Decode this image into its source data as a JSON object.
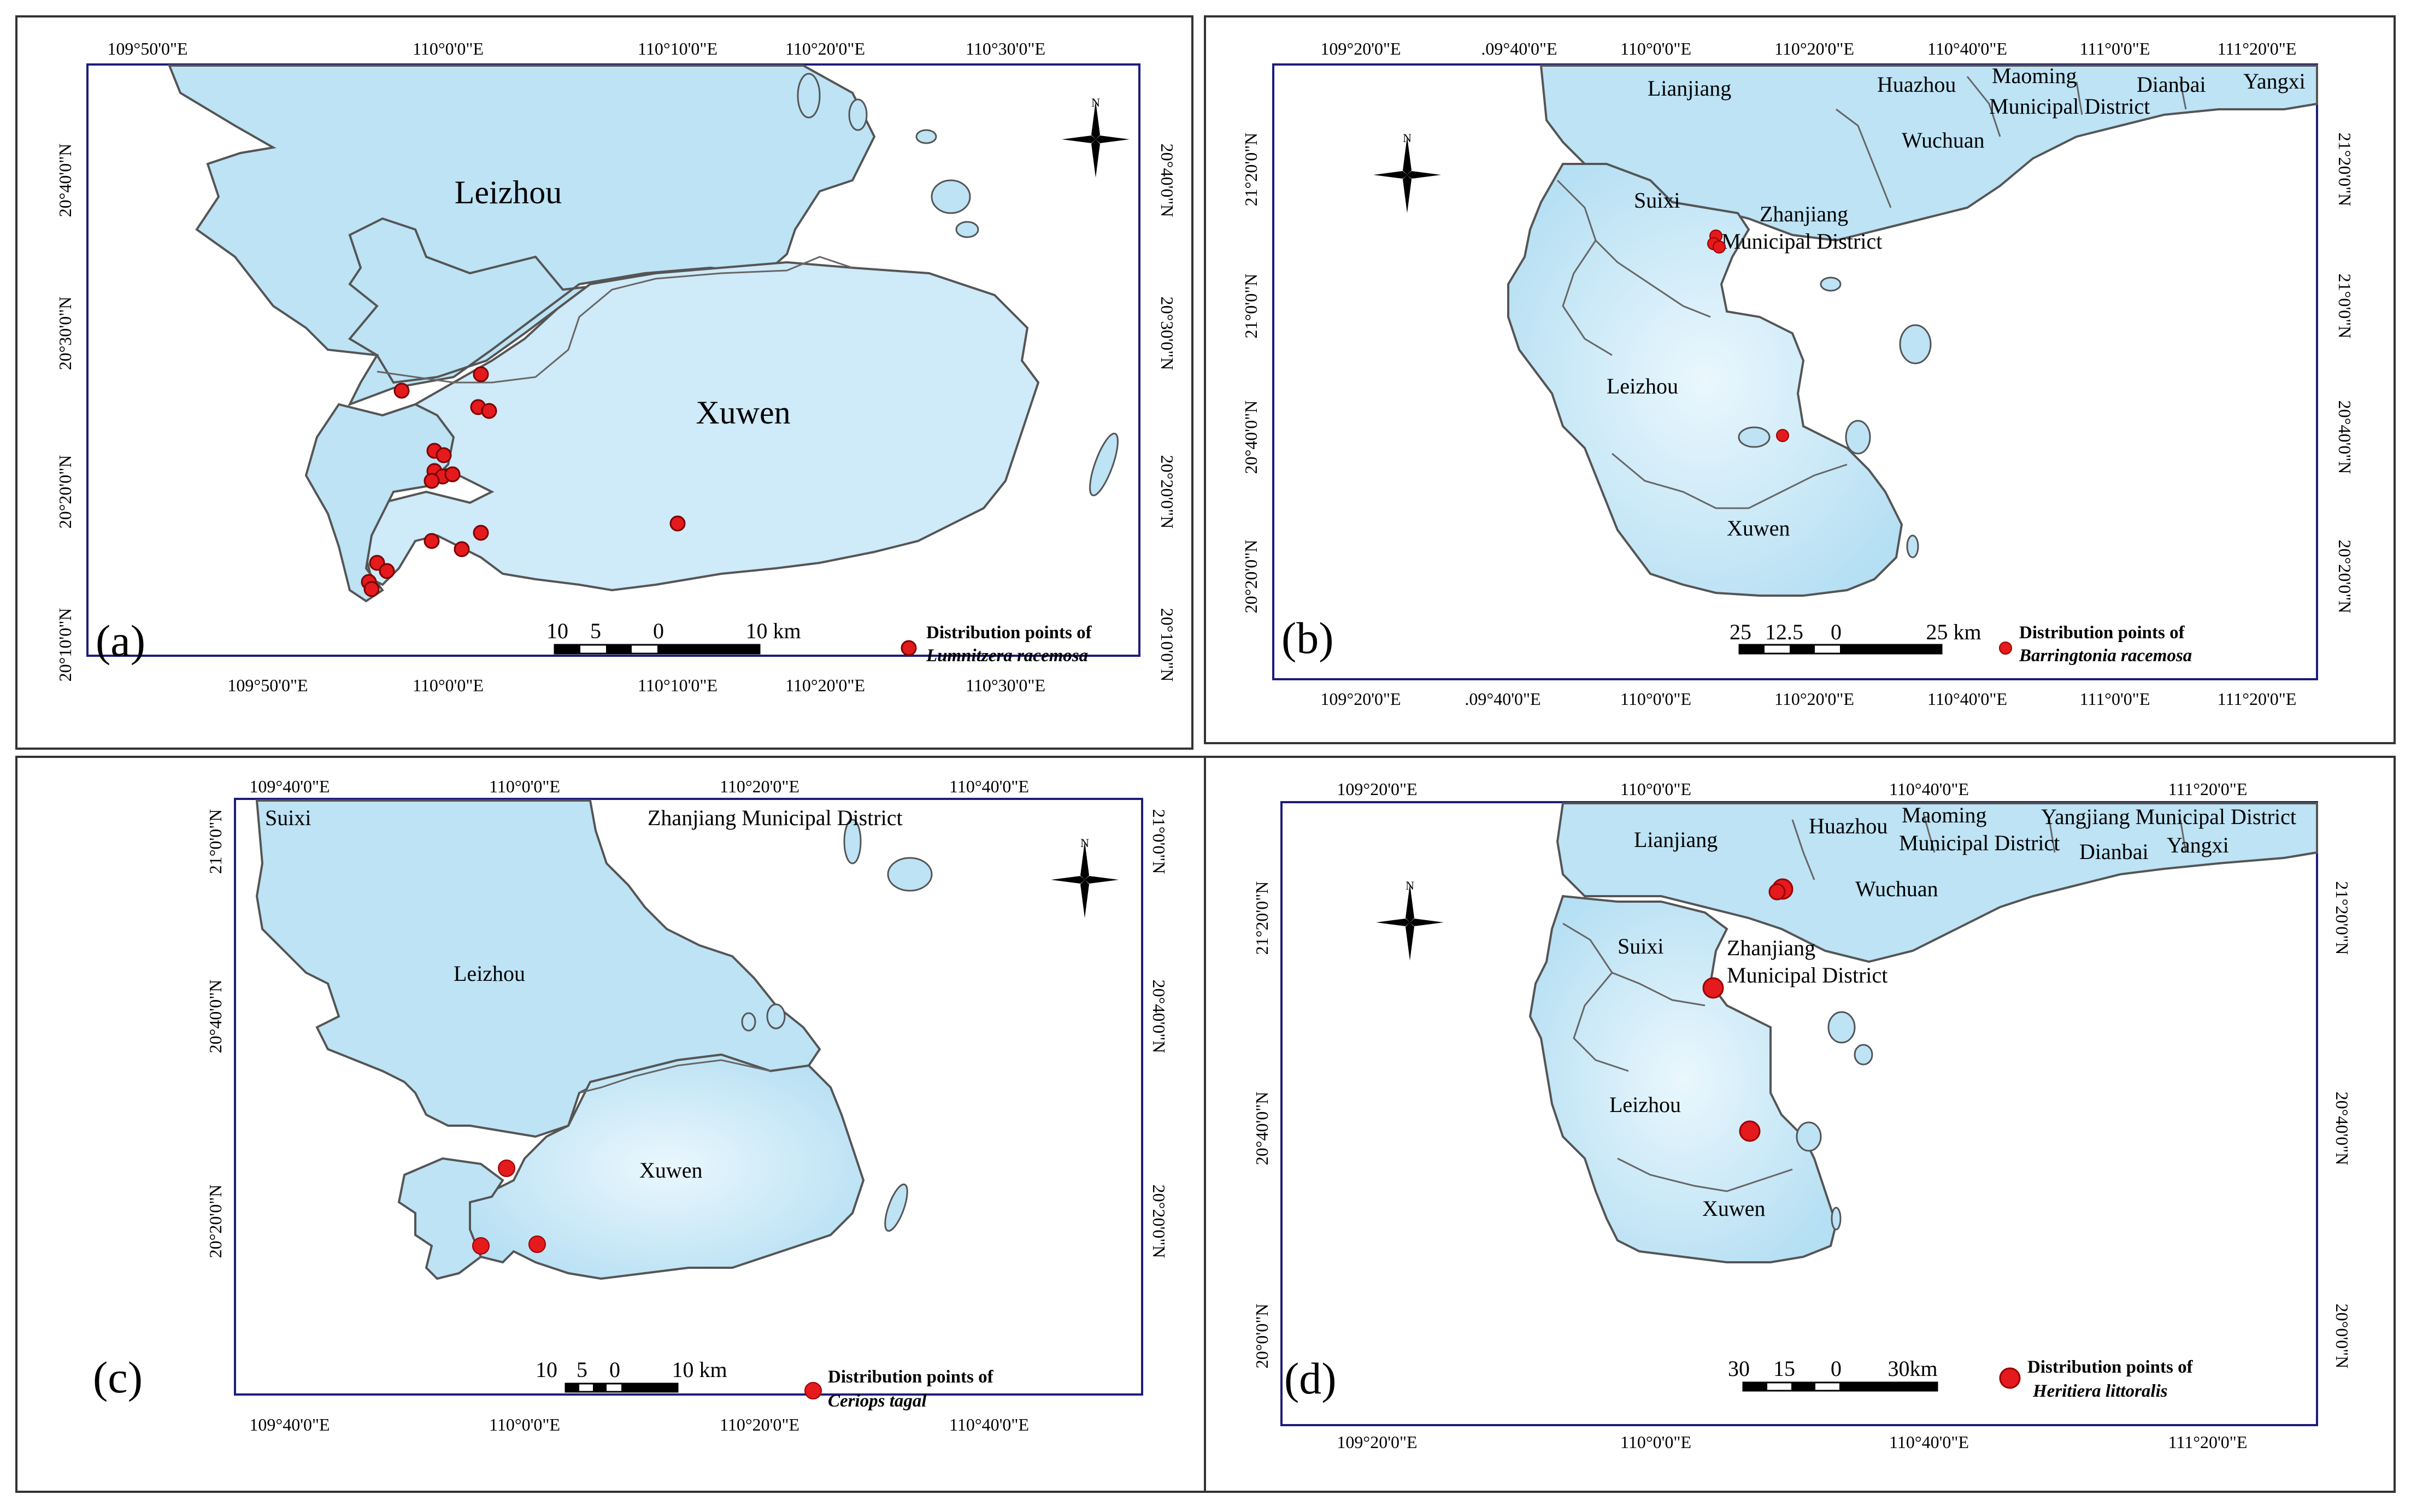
{
  "colors": {
    "land": "#bde3f5",
    "land_light": "#dff2fb",
    "coast": "#555555",
    "border": "#777777",
    "frame": "#1c1c7a",
    "point": "#e41a1c"
  },
  "icons": {
    "north_arrow": "compass-rose-icon",
    "points": "red-circle-marker"
  },
  "panels": [
    {
      "label": "(a)",
      "x_ticks": [
        "109°50'0\"E",
        "110°0'0\"E",
        "110°10'0\"E",
        "110°20'0\"E",
        "110°30'0\"E"
      ],
      "y_ticks": [
        "20°40'0\"N",
        "20°30'0\"N",
        "20°20'0\"N",
        "20°10'0\"N"
      ],
      "places": [
        "Leizhou",
        "Xuwen"
      ],
      "scale": [
        "10",
        "5",
        "0",
        "10 km"
      ],
      "legend_title": "Distribution points of",
      "legend_species": "Lumnitzera racemosa"
    },
    {
      "label": "(b)",
      "x_ticks": [
        "109°20'0\"E",
        ".09°40'0\"E",
        "110°0'0\"E",
        "110°20'0\"E",
        "110°40'0\"E",
        "111°0'0\"E",
        "111°20'0\"E"
      ],
      "y_ticks": [
        "21°20'0\"N",
        "21°0'0\"N",
        "20°40'0\"N",
        "20°20'0\"N"
      ],
      "places": [
        "Lianjiang",
        "Huazhou",
        "Maoming",
        "Municipal District",
        "Dianbai",
        "Yangxi",
        "Wuchuan",
        "Suixi",
        "Zhanjiang",
        "Municipal District",
        "Leizhou",
        "Xuwen"
      ],
      "scale": [
        "25",
        "12.5",
        "0",
        "25 km"
      ],
      "legend_title": "Distribution points of",
      "legend_species": "Barringtonia racemosa"
    },
    {
      "label": "(c)",
      "x_ticks": [
        "109°40'0\"E",
        "110°0'0\"E",
        "110°20'0\"E",
        "110°40'0\"E"
      ],
      "y_ticks": [
        "21°0'0\"N",
        "20°40'0\"N",
        "20°20'0\"N"
      ],
      "places": [
        "Suixi",
        "Zhanjiang Municipal District",
        "Leizhou",
        "Xuwen"
      ],
      "scale": [
        "10",
        "5",
        "0",
        "10 km"
      ],
      "legend_title": "Distribution points of",
      "legend_species": "Ceriops tagal"
    },
    {
      "label": "(d)",
      "x_ticks": [
        "109°20'0\"E",
        "110°0'0\"E",
        "110°40'0\"E",
        "111°20'0\"E"
      ],
      "y_ticks": [
        "21°20'0\"N",
        "20°40'0\"N",
        "20°0'0\"N"
      ],
      "places": [
        "Lianjiang",
        "Huazhou",
        "Maoming",
        "Municipal District",
        "Yangjiang Municipal District",
        "Dianbai",
        "Yangxi",
        "Wuchuan",
        "Suixi",
        "Zhanjiang",
        "Municipal District",
        "Leizhou",
        "Xuwen"
      ],
      "scale": [
        "30",
        "15",
        "0",
        "30km"
      ],
      "legend_title": "Distribution points of",
      "legend_species": "Heritiera littoralis"
    }
  ]
}
